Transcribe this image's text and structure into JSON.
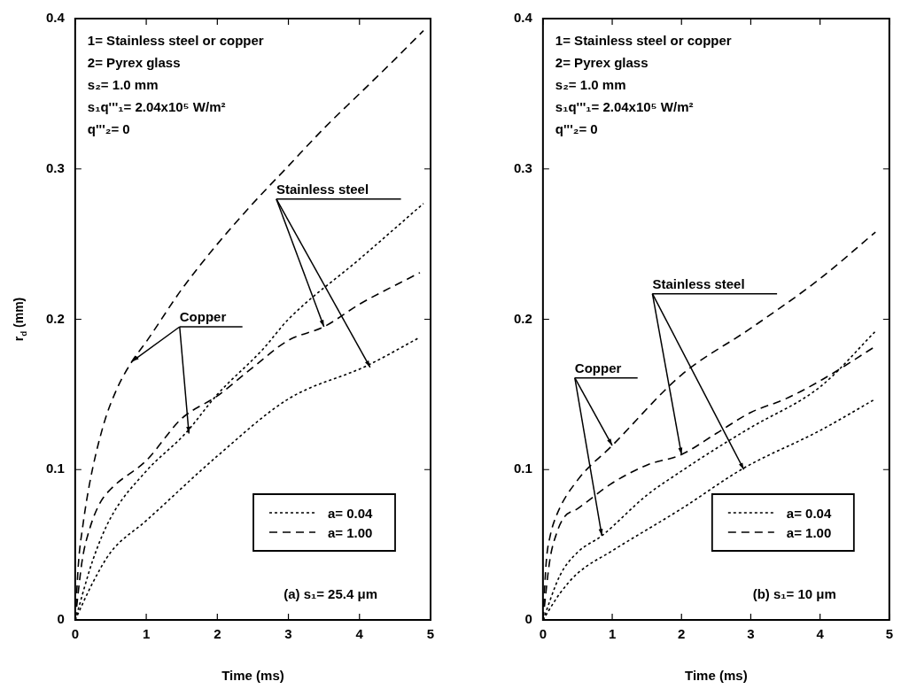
{
  "chart_data": [
    {
      "type": "line",
      "title": "(a) s₁= 25.4 μm",
      "xlabel": "Time (ms)",
      "ylabel": "r$_{d}$ (mm)",
      "xlim": [
        0,
        5
      ],
      "xticks": [
        0,
        1,
        2,
        3,
        4,
        5
      ],
      "ylim": [
        0,
        0.4
      ],
      "yticks": [
        0,
        0.1,
        0.2,
        0.3,
        0.4
      ],
      "grid": false,
      "legend": "bottom right",
      "marker": "none",
      "series": [
        {
          "name": "a= 0.04",
          "color": "#000000",
          "line_style": "dotted",
          "x": [
            0,
            0.25,
            0.5,
            1,
            1.55,
            2,
            2.64,
            3,
            4,
            4.9
          ],
          "values": [
            0,
            0.04,
            0.068,
            0.099,
            0.124,
            0.15,
            0.18,
            0.2,
            0.24,
            0.277
          ]
        },
        {
          "name": "a= 1.00",
          "color": "#000000",
          "line_style": "dashed",
          "x": [
            0,
            0.05,
            0.1,
            0.2,
            0.4,
            0.6,
            0.8,
            1,
            1.5,
            2,
            2.5,
            3,
            3.5,
            4,
            4.5,
            4.9
          ],
          "values": [
            0,
            0.04,
            0.06,
            0.09,
            0.13,
            0.155,
            0.172,
            0.185,
            0.22,
            0.25,
            0.277,
            0.302,
            0.327,
            0.35,
            0.373,
            0.392
          ]
        },
        {
          "color": "#000000",
          "line_style": "dotted",
          "x": [
            0,
            0.25,
            0.5,
            1,
            2,
            3,
            4.1,
            4.85
          ],
          "values": [
            0,
            0.025,
            0.045,
            0.066,
            0.109,
            0.147,
            0.169,
            0.188
          ]
        },
        {
          "color": "#000000",
          "line_style": "dashed",
          "x": [
            0,
            0.1,
            0.2,
            0.34,
            0.5,
            1,
            1.5,
            2,
            2.5,
            3,
            3.5,
            4,
            4.85
          ],
          "values": [
            0,
            0.04,
            0.06,
            0.077,
            0.087,
            0.106,
            0.134,
            0.149,
            0.168,
            0.186,
            0.195,
            0.21,
            0.231
          ]
        }
      ],
      "annotations": [
        "1= Stainless steel or copper",
        "2= Pyrex glass",
        "s₂= 1.0 mm",
        "s₁q'''₁= 2.04x10⁵ W/m²",
        "q'''₂= 0",
        {
          "text": "Copper",
          "x": 0.8,
          "y": 0.172
        },
        {
          "text": "Stainless steel",
          "x": 3.5,
          "y": 0.195
        }
      ]
    },
    {
      "type": "line",
      "title": "(b) s₁= 10 μm",
      "xlabel": "Time (ms)",
      "xlim": [
        0,
        5
      ],
      "xticks": [
        0,
        1,
        2,
        3,
        4,
        5
      ],
      "ylim": [
        0,
        0.4
      ],
      "yticks": [
        0,
        0.1,
        0.2,
        0.3,
        0.4
      ],
      "grid": false,
      "legend": "bottom right",
      "marker": "none",
      "series": [
        {
          "name": "a= 0.04",
          "color": "#000000",
          "line_style": "dotted",
          "x": [
            0,
            0.25,
            0.5,
            0.85,
            1.5,
            2,
            2.5,
            3,
            4,
            4.8
          ],
          "values": [
            0,
            0.03,
            0.045,
            0.056,
            0.083,
            0.099,
            0.114,
            0.128,
            0.155,
            0.192
          ]
        },
        {
          "name": "a= 1.00",
          "color": "#000000",
          "line_style": "dashed",
          "x": [
            0,
            0.05,
            0.1,
            0.2,
            0.5,
            1,
            2,
            3,
            4,
            4.8
          ],
          "values": [
            0,
            0.04,
            0.055,
            0.07,
            0.093,
            0.116,
            0.163,
            0.194,
            0.227,
            0.258
          ]
        },
        {
          "color": "#000000",
          "line_style": "dotted",
          "x": [
            0,
            0.25,
            0.5,
            1,
            2,
            2.9,
            4,
            4.8
          ],
          "values": [
            0,
            0.018,
            0.031,
            0.046,
            0.074,
            0.101,
            0.126,
            0.147
          ]
        },
        {
          "color": "#000000",
          "line_style": "dashed",
          "x": [
            0,
            0.1,
            0.2,
            0.3,
            0.5,
            1,
            1.5,
            2,
            2.5,
            3,
            3.5,
            4,
            4.8
          ],
          "values": [
            0,
            0.04,
            0.058,
            0.068,
            0.074,
            0.091,
            0.103,
            0.11,
            0.124,
            0.138,
            0.147,
            0.159,
            0.182
          ]
        }
      ],
      "annotations": [
        "1= Stainless steel or copper",
        "2= Pyrex glass",
        "s₂= 1.0 mm",
        "s₁q'''₁= 2.04x10⁵ W/m²",
        "q'''₂= 0",
        {
          "text": "Copper",
          "x": 1,
          "y": 0.116
        },
        {
          "text": "Stainless steel",
          "x": 2,
          "y": 0.11
        }
      ]
    }
  ]
}
